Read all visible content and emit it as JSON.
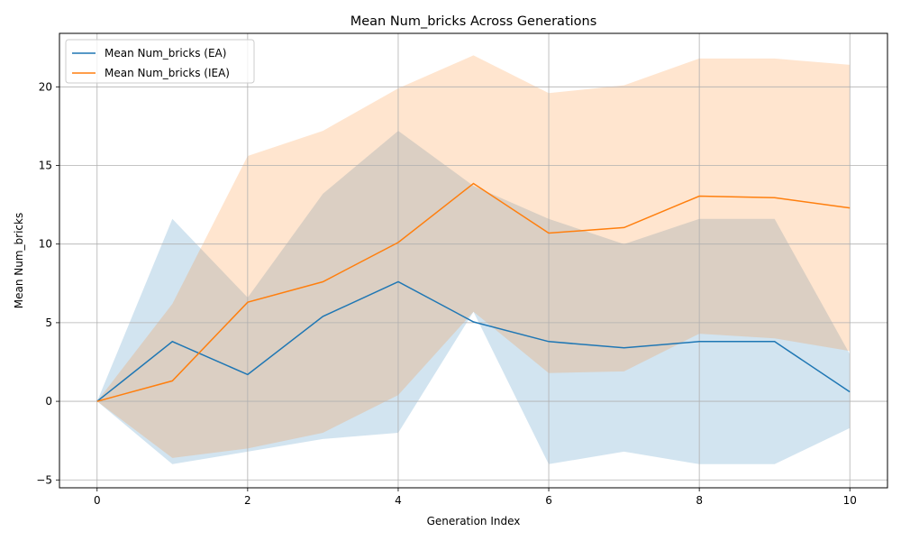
{
  "chart_data": {
    "type": "line",
    "title": "Mean Num_bricks Across Generations",
    "xlabel": "Generation Index",
    "ylabel": "Mean Num_bricks",
    "xlim": [
      -0.5,
      10.5
    ],
    "ylim": [
      -5.5,
      23.4
    ],
    "xticks": [
      0,
      2,
      4,
      6,
      8,
      10
    ],
    "yticks": [
      -5,
      0,
      5,
      10,
      15,
      20
    ],
    "grid": true,
    "legend_position": "top-left",
    "x": [
      0,
      1,
      2,
      3,
      4,
      5,
      6,
      7,
      8,
      9,
      10
    ],
    "series": [
      {
        "name": "Mean Num_bricks (EA)",
        "color": "#1f77b4",
        "band_color": "#1f77b4",
        "values": [
          0,
          3.8,
          1.7,
          5.4,
          7.6,
          5.05,
          3.8,
          3.4,
          3.8,
          3.8,
          0.6
        ],
        "upper": [
          0,
          11.6,
          6.6,
          13.2,
          17.2,
          13.7,
          11.6,
          10.0,
          11.6,
          11.6,
          3.0
        ],
        "lower": [
          0,
          -4.0,
          -3.2,
          -2.4,
          -2.0,
          5.7,
          -4.0,
          -3.2,
          -4.0,
          -4.0,
          -1.7
        ]
      },
      {
        "name": "Mean Num_bricks (IEA)",
        "color": "#ff7f0e",
        "band_color": "#ff7f0e",
        "values": [
          0,
          1.3,
          6.3,
          7.6,
          10.1,
          13.85,
          10.7,
          11.05,
          13.05,
          12.95,
          12.3
        ],
        "upper": [
          0,
          6.2,
          15.6,
          17.2,
          19.9,
          22.0,
          19.6,
          20.1,
          21.8,
          21.8,
          21.4
        ],
        "lower": [
          0,
          -3.6,
          -3.0,
          -2.0,
          0.4,
          5.7,
          1.8,
          1.9,
          4.3,
          4.0,
          3.2
        ]
      }
    ]
  }
}
